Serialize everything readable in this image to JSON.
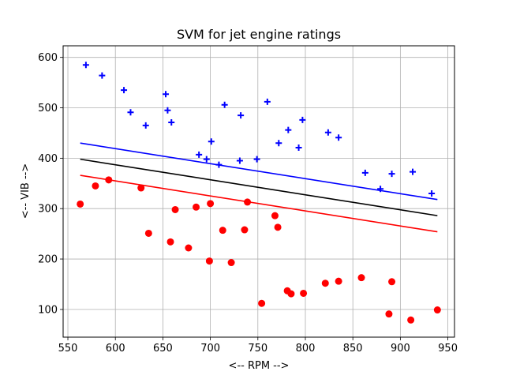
{
  "chart_data": {
    "type": "scatter",
    "title": "SVM for jet engine ratings",
    "xlabel": "<-- RPM -->",
    "ylabel": "<-- VIB -->",
    "xlim": [
      545,
      957
    ],
    "ylim": [
      45,
      623
    ],
    "xticks": [
      550,
      600,
      650,
      700,
      750,
      800,
      850,
      900,
      950
    ],
    "yticks": [
      100,
      200,
      300,
      400,
      500,
      600
    ],
    "grid": true,
    "colors": {
      "positive": "#0000ff",
      "negative": "#ff0000",
      "boundary": "#000000"
    },
    "series": [
      {
        "marker": "plus",
        "color": "#0000ff",
        "points": [
          [
            569,
            585
          ],
          [
            586,
            564
          ],
          [
            609,
            535
          ],
          [
            616,
            491
          ],
          [
            632,
            465
          ],
          [
            653,
            527
          ],
          [
            655,
            495
          ],
          [
            659,
            471
          ],
          [
            688,
            407
          ],
          [
            696,
            398
          ],
          [
            701,
            433
          ],
          [
            709,
            387
          ],
          [
            715,
            506
          ],
          [
            731,
            395
          ],
          [
            732,
            485
          ],
          [
            749,
            398
          ],
          [
            760,
            512
          ],
          [
            772,
            430
          ],
          [
            782,
            456
          ],
          [
            793,
            421
          ],
          [
            797,
            476
          ],
          [
            824,
            451
          ],
          [
            835,
            441
          ],
          [
            863,
            371
          ],
          [
            879,
            339
          ],
          [
            891,
            369
          ],
          [
            913,
            373
          ],
          [
            933,
            330
          ]
        ]
      },
      {
        "marker": "circle",
        "color": "#ff0000",
        "points": [
          [
            563,
            309
          ],
          [
            579,
            345
          ],
          [
            593,
            357
          ],
          [
            627,
            341
          ],
          [
            635,
            251
          ],
          [
            658,
            234
          ],
          [
            663,
            298
          ],
          [
            677,
            222
          ],
          [
            685,
            303
          ],
          [
            699,
            196
          ],
          [
            700,
            310
          ],
          [
            713,
            257
          ],
          [
            722,
            193
          ],
          [
            736,
            258
          ],
          [
            739,
            313
          ],
          [
            754,
            112
          ],
          [
            768,
            286
          ],
          [
            771,
            263
          ],
          [
            781,
            137
          ],
          [
            785,
            131
          ],
          [
            798,
            132
          ],
          [
            821,
            152
          ],
          [
            835,
            156
          ],
          [
            859,
            163
          ],
          [
            888,
            91
          ],
          [
            891,
            155
          ],
          [
            911,
            79
          ],
          [
            939,
            99
          ]
        ]
      }
    ],
    "lines": [
      {
        "color": "#0000ff",
        "x": [
          563,
          939
        ],
        "y": [
          430,
          318
        ]
      },
      {
        "color": "#000000",
        "x": [
          563,
          939
        ],
        "y": [
          398,
          286
        ]
      },
      {
        "color": "#ff0000",
        "x": [
          563,
          939
        ],
        "y": [
          366,
          254
        ]
      }
    ]
  }
}
